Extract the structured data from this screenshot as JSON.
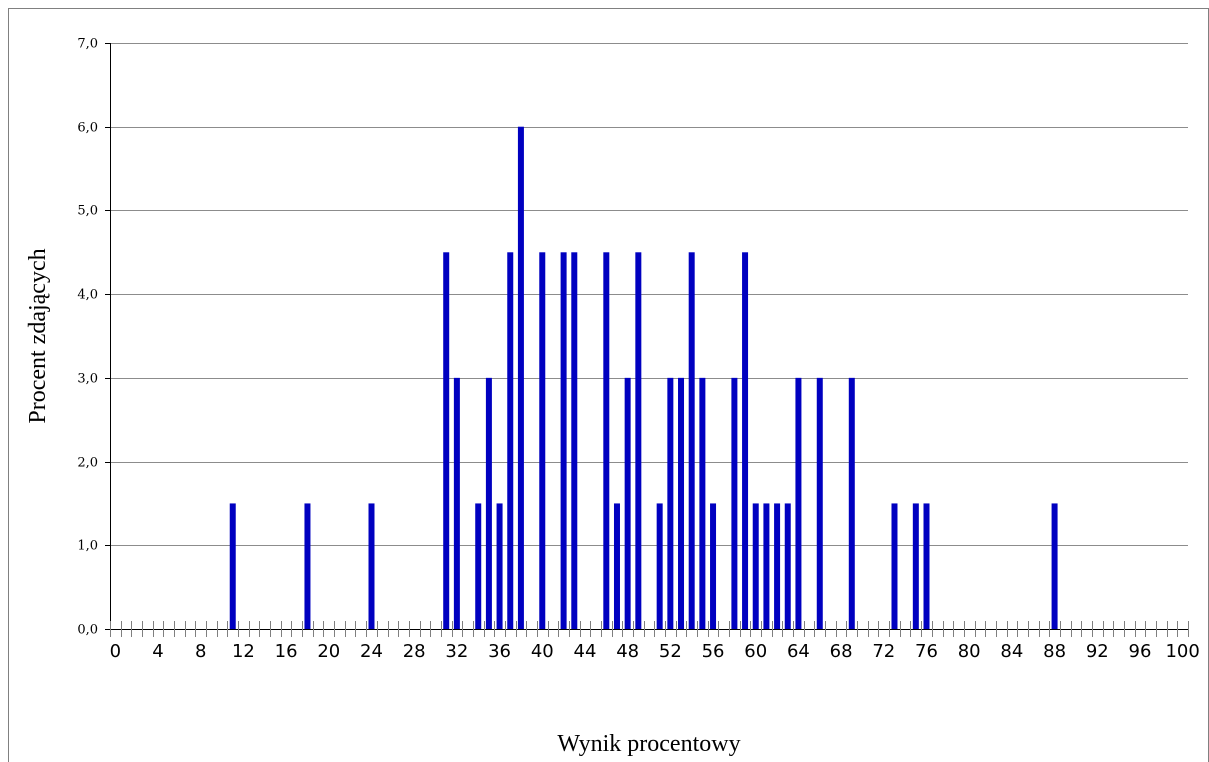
{
  "chart_data": {
    "type": "bar",
    "title": "",
    "xlabel": "Wynik procentowy",
    "ylabel": "Procent zdających",
    "xlim": [
      0,
      100
    ],
    "ylim": [
      0,
      7
    ],
    "y_tick_labels": [
      "0,0",
      "1,0",
      "2,0",
      "3,0",
      "4,0",
      "5,0",
      "6,0",
      "7,0"
    ],
    "x_tick_labels": [
      "0",
      "4",
      "8",
      "12",
      "16",
      "20",
      "24",
      "28",
      "32",
      "36",
      "40",
      "44",
      "48",
      "52",
      "56",
      "60",
      "64",
      "68",
      "72",
      "76",
      "80",
      "84",
      "88",
      "92",
      "96",
      "100"
    ],
    "grid": "horizontal",
    "bar_color": "#0000c0",
    "x": [
      11,
      18,
      24,
      31,
      32,
      34,
      35,
      36,
      37,
      38,
      40,
      42,
      43,
      46,
      47,
      48,
      49,
      51,
      52,
      53,
      54,
      55,
      56,
      58,
      59,
      60,
      61,
      62,
      63,
      64,
      66,
      69,
      73,
      75,
      76,
      88
    ],
    "values": [
      1.5,
      1.5,
      1.5,
      4.5,
      3.0,
      1.5,
      3.0,
      1.5,
      4.5,
      6.0,
      4.5,
      4.5,
      4.5,
      4.5,
      1.5,
      3.0,
      4.5,
      1.5,
      3.0,
      3.0,
      4.5,
      3.0,
      1.5,
      3.0,
      4.5,
      1.5,
      1.5,
      1.5,
      1.5,
      3.0,
      3.0,
      3.0,
      1.5,
      1.5,
      1.5,
      1.5
    ]
  }
}
